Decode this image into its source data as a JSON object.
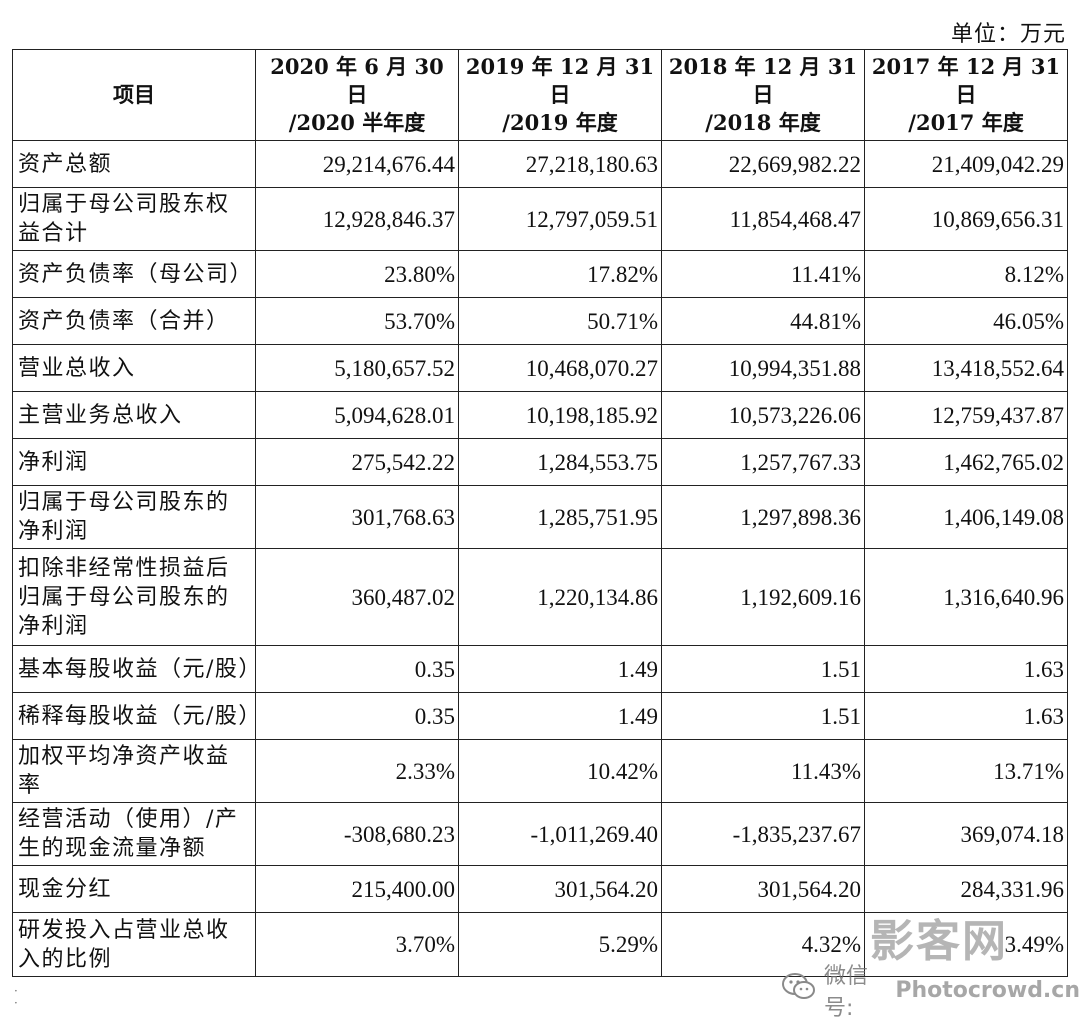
{
  "unit_label": "单位：万元",
  "header": {
    "item": "项目",
    "columns": [
      {
        "line1": "2020 年 6 月 30 日",
        "line2": "/2020 半年度"
      },
      {
        "line1": "2019 年 12 月 31 日",
        "line2": "/2019 年度"
      },
      {
        "line1": "2018 年 12 月 31 日",
        "line2": "/2018 年度"
      },
      {
        "line1": "2017 年 12 月 31 日",
        "line2": "/2017 年度"
      }
    ]
  },
  "rows": [
    {
      "label": "资产总额",
      "values": [
        "29,214,676.44",
        "27,218,180.63",
        "22,669,982.22",
        "21,409,042.29"
      ]
    },
    {
      "label": "归属于母公司股东权益合计",
      "values": [
        "12,928,846.37",
        "12,797,059.51",
        "11,854,468.47",
        "10,869,656.31"
      ]
    },
    {
      "label": "资产负债率（母公司）",
      "values": [
        "23.80%",
        "17.82%",
        "11.41%",
        "8.12%"
      ]
    },
    {
      "label": "资产负债率（合并）",
      "values": [
        "53.70%",
        "50.71%",
        "44.81%",
        "46.05%"
      ]
    },
    {
      "label": "营业总收入",
      "values": [
        "5,180,657.52",
        "10,468,070.27",
        "10,994,351.88",
        "13,418,552.64"
      ]
    },
    {
      "label": "主营业务总收入",
      "values": [
        "5,094,628.01",
        "10,198,185.92",
        "10,573,226.06",
        "12,759,437.87"
      ]
    },
    {
      "label": "净利润",
      "values": [
        "275,542.22",
        "1,284,553.75",
        "1,257,767.33",
        "1,462,765.02"
      ]
    },
    {
      "label": "归属于母公司股东的净利润",
      "values": [
        "301,768.63",
        "1,285,751.95",
        "1,297,898.36",
        "1,406,149.08"
      ]
    },
    {
      "label": "扣除非经常性损益后归属于母公司股东的净利润",
      "values": [
        "360,487.02",
        "1,220,134.86",
        "1,192,609.16",
        "1,316,640.96"
      ]
    },
    {
      "label": "基本每股收益（元/股）",
      "values": [
        "0.35",
        "1.49",
        "1.51",
        "1.63"
      ]
    },
    {
      "label": "稀释每股收益（元/股）",
      "values": [
        "0.35",
        "1.49",
        "1.51",
        "1.63"
      ]
    },
    {
      "label": "加权平均净资产收益率",
      "values": [
        "2.33%",
        "10.42%",
        "11.43%",
        "13.71%"
      ]
    },
    {
      "label": "经营活动（使用）/产生的现金流量净额",
      "values": [
        "-308,680.23",
        "-1,011,269.40",
        "-1,835,237.67",
        "369,074.18"
      ]
    },
    {
      "label": "现金分红",
      "values": [
        "215,400.00",
        "301,564.20",
        "301,564.20",
        "284,331.96"
      ]
    },
    {
      "label": "研发投入占营业总收入的比例",
      "values": [
        "3.70%",
        "5.29%",
        "4.32%",
        "3.49%"
      ]
    }
  ],
  "watermark": {
    "brand": "影客网",
    "wechat_label": "微信号:",
    "site": "Photocrowd.cn",
    "icon": "wechat-icon"
  }
}
